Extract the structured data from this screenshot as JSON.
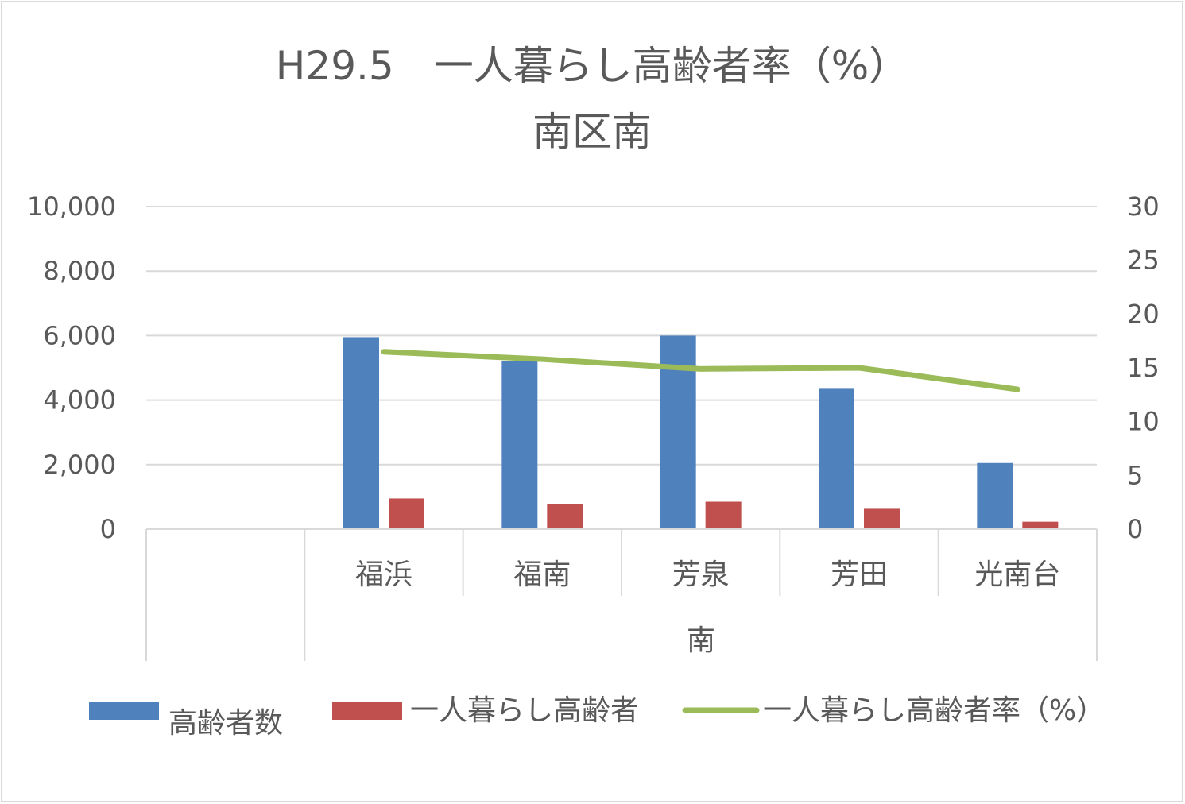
{
  "chart_data": {
    "type": "bar",
    "title": [
      "H29.5　一人暮らし高齢者率（%）",
      "南区南"
    ],
    "group_label": "南",
    "categories": [
      "",
      "福浜",
      "福南",
      "芳泉",
      "芳田",
      "光南台"
    ],
    "series": [
      {
        "name": "高齢者数",
        "type": "bar",
        "axis": "left",
        "color": "#4f81bd",
        "values": [
          null,
          5950,
          5200,
          6000,
          4350,
          2050
        ]
      },
      {
        "name": "一人暮らし高齢者",
        "type": "bar",
        "axis": "left",
        "color": "#c0504d",
        "values": [
          null,
          950,
          780,
          850,
          630,
          230
        ]
      },
      {
        "name": "一人暮らし高齢者率（%）",
        "type": "line",
        "axis": "right",
        "color": "#9bbb59",
        "values": [
          null,
          16.5,
          15.8,
          14.9,
          15.0,
          13.0
        ]
      }
    ],
    "y_left": {
      "min": 0,
      "max": 10000,
      "ticks": [
        "0",
        "2,000",
        "4,000",
        "6,000",
        "8,000",
        "10,000"
      ]
    },
    "y_right": {
      "min": 0,
      "max": 30,
      "ticks": [
        "0",
        "5",
        "10",
        "15",
        "20",
        "25",
        "30"
      ]
    },
    "grid": true,
    "legend": "bottom"
  }
}
